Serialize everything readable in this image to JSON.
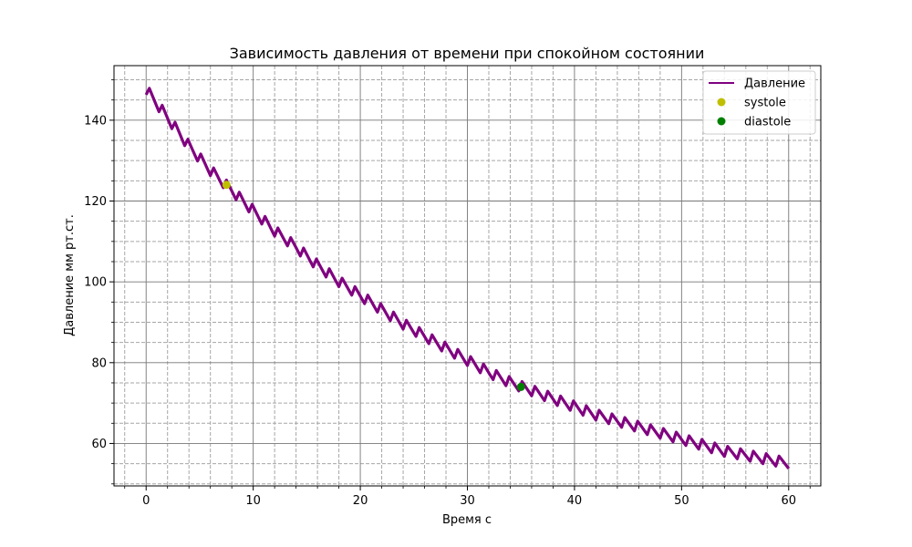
{
  "chart_data": {
    "type": "line",
    "title": "Зависимость давления от времени при спокойном состоянии",
    "xlabel": "Время с",
    "ylabel": "Давление мм рт.ст.",
    "xlim": [
      -3,
      63
    ],
    "ylim": [
      49.5,
      153.5
    ],
    "x_ticks": [
      0,
      10,
      20,
      30,
      40,
      50,
      60
    ],
    "y_ticks": [
      60,
      80,
      100,
      120,
      140
    ],
    "x_tick_labels": [
      "0",
      "10",
      "20",
      "30",
      "40",
      "50",
      "60"
    ],
    "y_tick_labels": [
      "60",
      "80",
      "100",
      "120",
      "140"
    ],
    "x_minor_step": 2,
    "y_minor_step": 5,
    "grid": {
      "major": true,
      "minor": true,
      "minor_style": "dashed"
    },
    "legend_position": "top-right",
    "series": [
      {
        "name": "Давление",
        "kind": "line",
        "color": "#800080",
        "x": [
          0,
          2,
          4,
          6,
          8,
          10,
          12,
          14,
          16,
          18,
          20,
          22,
          24,
          26,
          28,
          30,
          32,
          34,
          36,
          38,
          40,
          42,
          44,
          46,
          48,
          50,
          52,
          54,
          56,
          58,
          60
        ],
        "y": [
          147.5,
          140.5,
          133.5,
          127.5,
          122.5,
          117.5,
          112.5,
          108.5,
          104.0,
          100.0,
          96.5,
          93.0,
          89.5,
          86.5,
          83.5,
          80.5,
          77.5,
          75.0,
          73.0,
          71.0,
          69.0,
          67.0,
          65.5,
          64.0,
          62.5,
          61.0,
          59.5,
          58.0,
          57.0,
          56.0,
          55.0
        ],
        "oscillation_period_s": 1.2,
        "oscillation_amplitude": 1.2
      },
      {
        "name": "systole",
        "kind": "scatter",
        "color": "#bfbf00",
        "x": [
          7.5
        ],
        "y": [
          124
        ]
      },
      {
        "name": "diastole",
        "kind": "scatter",
        "color": "#008000",
        "x": [
          35
        ],
        "y": [
          74
        ]
      }
    ]
  }
}
